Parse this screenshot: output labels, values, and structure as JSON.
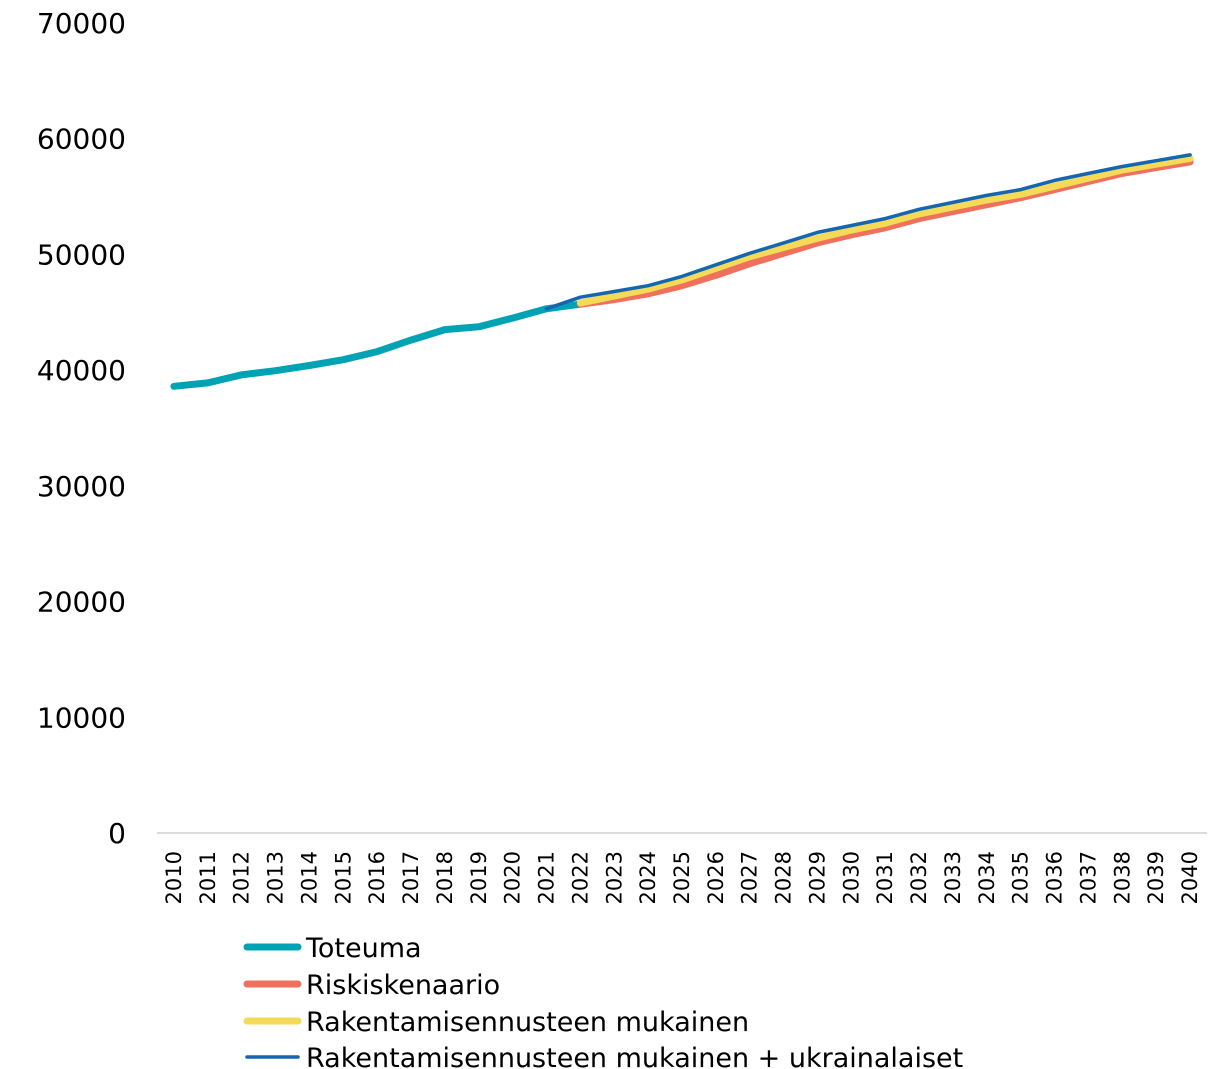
{
  "chart_data": {
    "type": "line",
    "title": "",
    "xlabel": "",
    "ylabel": "",
    "ylim": [
      0,
      70000
    ],
    "yticks": [
      0,
      10000,
      20000,
      30000,
      40000,
      50000,
      60000,
      70000
    ],
    "grid": false,
    "legend_position": "bottom",
    "categories": [
      "2010",
      "2011",
      "2012",
      "2013",
      "2014",
      "2015",
      "2016",
      "2017",
      "2018",
      "2019",
      "2020",
      "2021",
      "2022",
      "2023",
      "2024",
      "2025",
      "2026",
      "2027",
      "2028",
      "2029",
      "2030",
      "2031",
      "2032",
      "2033",
      "2034",
      "2035",
      "2036",
      "2037",
      "2038",
      "2039",
      "2040"
    ],
    "series": [
      {
        "name": "Toteuma",
        "color": "#00A3B4",
        "stroke_width": 7,
        "values": [
          38600,
          38900,
          39600,
          39950,
          40400,
          40900,
          41600,
          42600,
          43500,
          43750,
          44500,
          45300,
          45700,
          null,
          null,
          null,
          null,
          null,
          null,
          null,
          null,
          null,
          null,
          null,
          null,
          null,
          null,
          null,
          null,
          null,
          null
        ]
      },
      {
        "name": "Riskiskenaario",
        "color": "#F0705E",
        "stroke_width": 7,
        "values": [
          null,
          null,
          null,
          null,
          null,
          null,
          null,
          null,
          null,
          null,
          null,
          null,
          45700,
          46100,
          46600,
          47300,
          48200,
          49200,
          50100,
          51000,
          51700,
          52300,
          53100,
          53700,
          54300,
          54900,
          55600,
          56300,
          57000,
          57500,
          58000
        ]
      },
      {
        "name": "Rakentamisennusteen mukainen",
        "color": "#F5DA57",
        "stroke_width": 7,
        "values": [
          null,
          null,
          null,
          null,
          null,
          null,
          null,
          null,
          null,
          null,
          null,
          null,
          45800,
          46400,
          47000,
          47800,
          48800,
          49800,
          50600,
          51400,
          52100,
          52700,
          53500,
          54100,
          54700,
          55200,
          55900,
          56600,
          57300,
          57800,
          58300
        ]
      },
      {
        "name": "Rakentamisennusteen mukainen + ukrainalaiset",
        "color": "#1566B0",
        "stroke_width": 3.5,
        "values": [
          null,
          null,
          null,
          null,
          null,
          null,
          null,
          null,
          null,
          null,
          null,
          45300,
          46300,
          46800,
          47300,
          48100,
          49100,
          50100,
          51000,
          51900,
          52500,
          53100,
          53900,
          54500,
          55100,
          55600,
          56400,
          57000,
          57600,
          58100,
          58600
        ]
      }
    ]
  }
}
